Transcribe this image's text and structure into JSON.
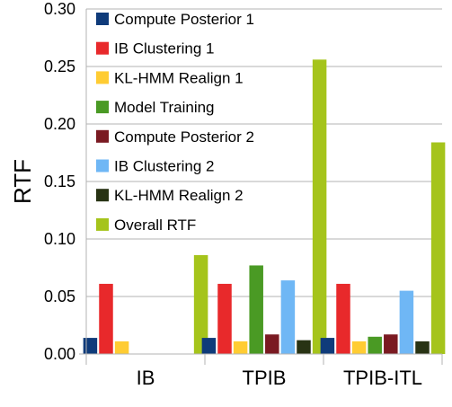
{
  "chart_data": {
    "type": "bar",
    "title": "",
    "xlabel": "",
    "ylabel": "RTF",
    "ylim": [
      0,
      0.3
    ],
    "yticks": [
      "0.00",
      "0.05",
      "0.10",
      "0.15",
      "0.20",
      "0.25",
      "0.30"
    ],
    "grid": "horizontal",
    "legend_position": "top-left",
    "categories": [
      "IB",
      "TPIB",
      "TPIB-ITL"
    ],
    "series": [
      {
        "name": "Compute Posterior 1",
        "color": "#0f3b7a",
        "values": [
          0.014,
          0.014,
          0.014
        ]
      },
      {
        "name": "IB Clustering 1",
        "color": "#e8292b",
        "values": [
          0.061,
          0.061,
          0.061
        ]
      },
      {
        "name": "KL-HMM Realign 1",
        "color": "#ffcc33",
        "values": [
          0.011,
          0.011,
          0.011
        ]
      },
      {
        "name": "Model Training",
        "color": "#4a9a24",
        "values": [
          0,
          0.077,
          0.015
        ]
      },
      {
        "name": "Compute Posterior 2",
        "color": "#7a1a22",
        "values": [
          0,
          0.017,
          0.017
        ]
      },
      {
        "name": "IB Clustering 2",
        "color": "#6fb7f5",
        "values": [
          0,
          0.064,
          0.055
        ]
      },
      {
        "name": "KL-HMM Realign 2",
        "color": "#283314",
        "values": [
          0,
          0.012,
          0.011
        ]
      },
      {
        "name": "Overall RTF",
        "color": "#a5c41b",
        "values": [
          0.086,
          0.256,
          0.184
        ]
      }
    ]
  }
}
